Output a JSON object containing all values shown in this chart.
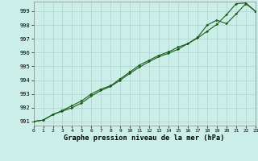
{
  "title": "Graphe pression niveau de la mer (hPa)",
  "bg_color": "#cceee8",
  "grid_color": "#aad4cc",
  "line_color": "#1a5c1a",
  "xlim": [
    0,
    23
  ],
  "ylim": [
    990.7,
    999.7
  ],
  "yticks": [
    991,
    992,
    993,
    994,
    995,
    996,
    997,
    998,
    999
  ],
  "xticks": [
    0,
    1,
    2,
    3,
    4,
    5,
    6,
    7,
    8,
    9,
    10,
    11,
    12,
    13,
    14,
    15,
    16,
    17,
    18,
    19,
    20,
    21,
    22,
    23
  ],
  "s1_x": [
    0,
    1,
    2,
    3,
    4,
    5,
    6,
    7,
    8,
    9,
    10,
    11,
    12,
    13,
    14,
    15,
    16,
    17,
    18,
    19,
    20,
    21,
    22,
    23
  ],
  "s1_y": [
    991.0,
    991.1,
    991.5,
    991.75,
    992.0,
    992.35,
    992.85,
    993.25,
    993.55,
    994.0,
    994.5,
    994.95,
    995.35,
    995.7,
    995.95,
    996.25,
    996.65,
    997.05,
    997.55,
    998.05,
    998.75,
    999.55,
    999.6,
    999.0
  ],
  "s2_x": [
    0,
    1,
    2,
    3,
    4,
    5,
    6,
    7,
    8,
    9,
    10,
    11,
    12,
    13,
    14,
    15,
    16,
    17,
    18,
    19,
    20,
    21,
    22,
    23
  ],
  "s2_y": [
    991.0,
    991.1,
    991.5,
    991.8,
    992.15,
    992.5,
    993.0,
    993.35,
    993.6,
    994.1,
    994.6,
    995.1,
    995.45,
    995.8,
    996.05,
    996.4,
    996.65,
    997.1,
    998.0,
    998.35,
    998.1,
    998.8,
    999.55,
    999.0
  ]
}
